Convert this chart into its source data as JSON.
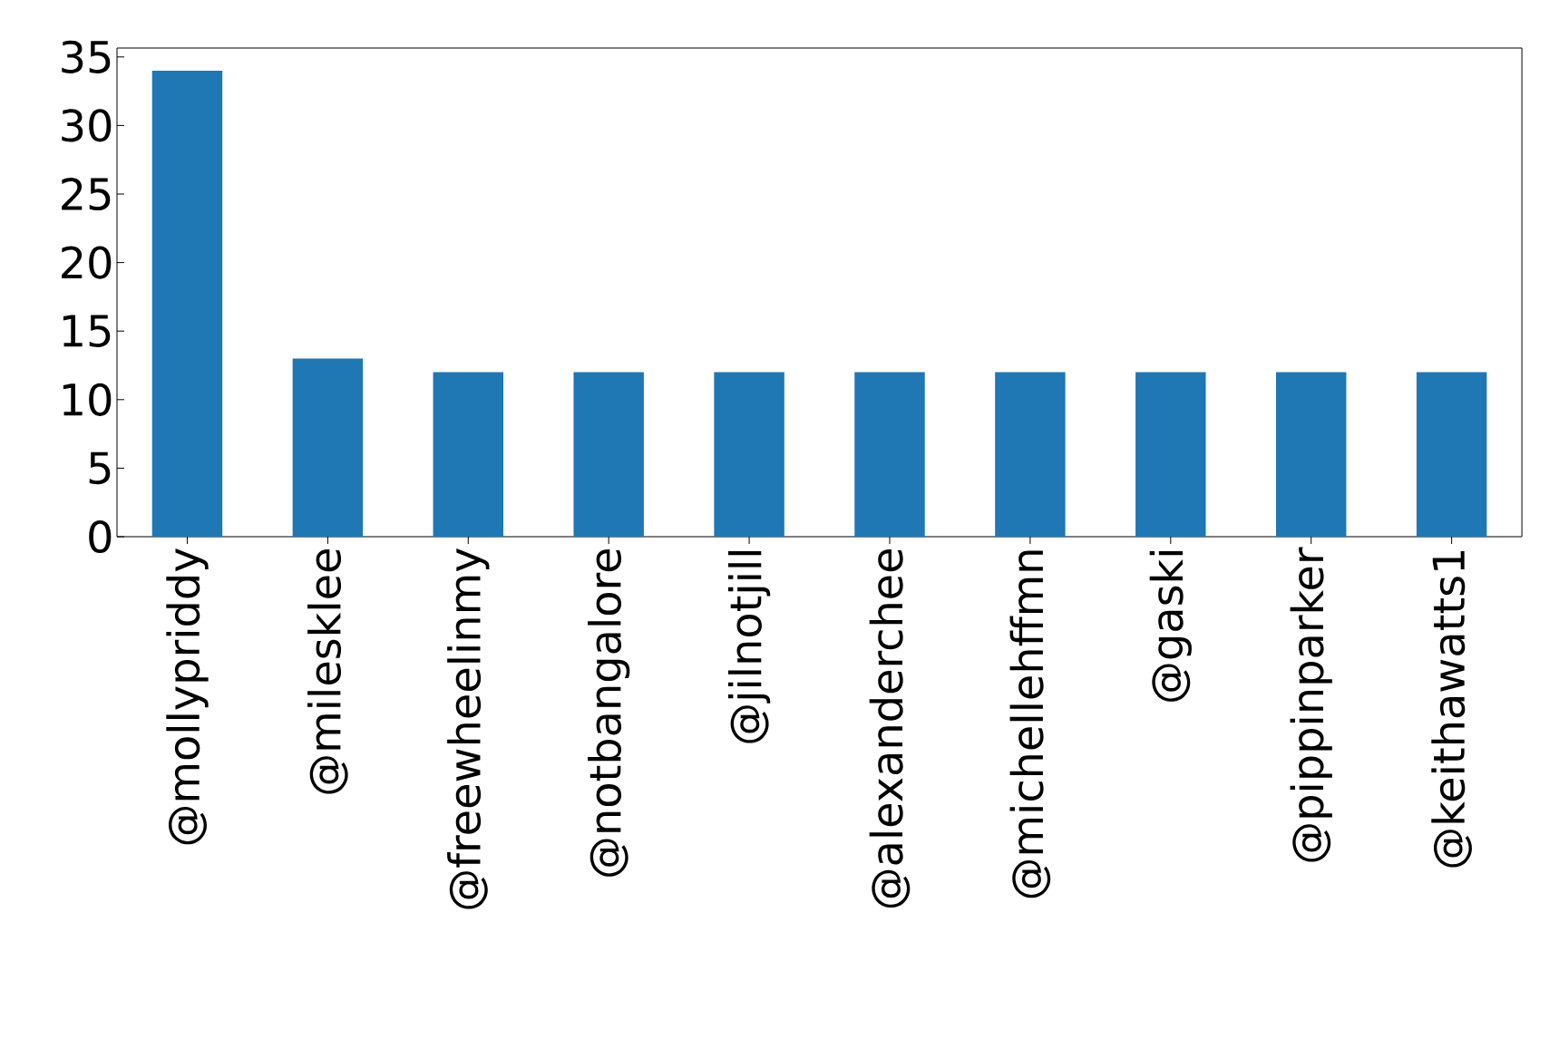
{
  "chart_data": {
    "type": "bar",
    "categories": [
      "@mollypriddy",
      "@milesklee",
      "@freewheelinmy",
      "@notbangalore",
      "@jilnotjill",
      "@alexanderchee",
      "@michellehffmn",
      "@gaski",
      "@pippinparker",
      "@keithawatts1"
    ],
    "values": [
      34,
      13,
      12,
      12,
      12,
      12,
      12,
      12,
      12,
      12
    ],
    "color": "#1f77b4",
    "ylim": [
      0,
      35.65
    ],
    "yticks": [
      0,
      5,
      10,
      15,
      20,
      25,
      30,
      35
    ],
    "grid": false
  }
}
